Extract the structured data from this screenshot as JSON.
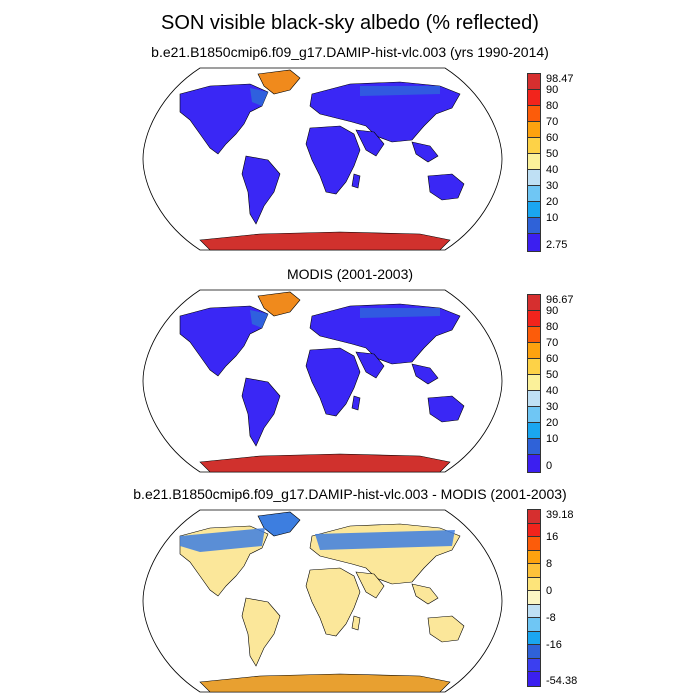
{
  "figure": {
    "title": "SON visible black-sky albedo (% reflected)"
  },
  "colors": {
    "land_low": "#3a27f5",
    "land_mid": "#2d6fd8",
    "ice": "#d0312d",
    "greenland_hi": "#f08a1c",
    "ocean": "#ffffff",
    "coast": "#000000",
    "diff_pos": "#fbe79a",
    "diff_neg": "#3d7ee0",
    "diff_ice": "#e8a030"
  },
  "panels": [
    {
      "id": "model",
      "title": "b.e21.B1850cmip6.f09_g17.DAMIP-hist-vlc.003 (yrs 1990-2014)",
      "colorbar": {
        "labels": [
          "98.47",
          "90",
          "80",
          "70",
          "60",
          "50",
          "40",
          "30",
          "20",
          "10",
          "2.75"
        ],
        "colors": [
          "#d62f2f",
          "#f2241c",
          "#fc5c0a",
          "#fda20f",
          "#fdd247",
          "#fbf19a",
          "#bfe0f4",
          "#6fc6f4",
          "#1aa6f0",
          "#2f62d8",
          "#3b1ff0"
        ]
      }
    },
    {
      "id": "modis",
      "title": "MODIS (2001-2003)",
      "colorbar": {
        "labels": [
          "96.67",
          "90",
          "80",
          "70",
          "60",
          "50",
          "40",
          "30",
          "20",
          "10",
          "0"
        ],
        "colors": [
          "#d62f2f",
          "#f2241c",
          "#fc5c0a",
          "#fda20f",
          "#fdd247",
          "#fbf19a",
          "#bfe0f4",
          "#6fc6f4",
          "#1aa6f0",
          "#2f62d8",
          "#3b1ff0"
        ]
      }
    },
    {
      "id": "diff",
      "title": "b.e21.B1850cmip6.f09_g17.DAMIP-hist-vlc.003 - MODIS (2001-2003)",
      "colorbar": {
        "labels": [
          "39.18",
          "",
          "16",
          "",
          "8",
          "",
          "0",
          "",
          "-8",
          "",
          "-16",
          "",
          "-54.38"
        ],
        "colors": [
          "#d62f2f",
          "#f2241c",
          "#fc5c0a",
          "#fda20f",
          "#fdc23a",
          "#fde47a",
          "#fbf6c4",
          "#bfe0f4",
          "#6fc6f4",
          "#1aa6f0",
          "#2f62d8",
          "#3b3ff0",
          "#3b1ff0"
        ]
      }
    }
  ]
}
